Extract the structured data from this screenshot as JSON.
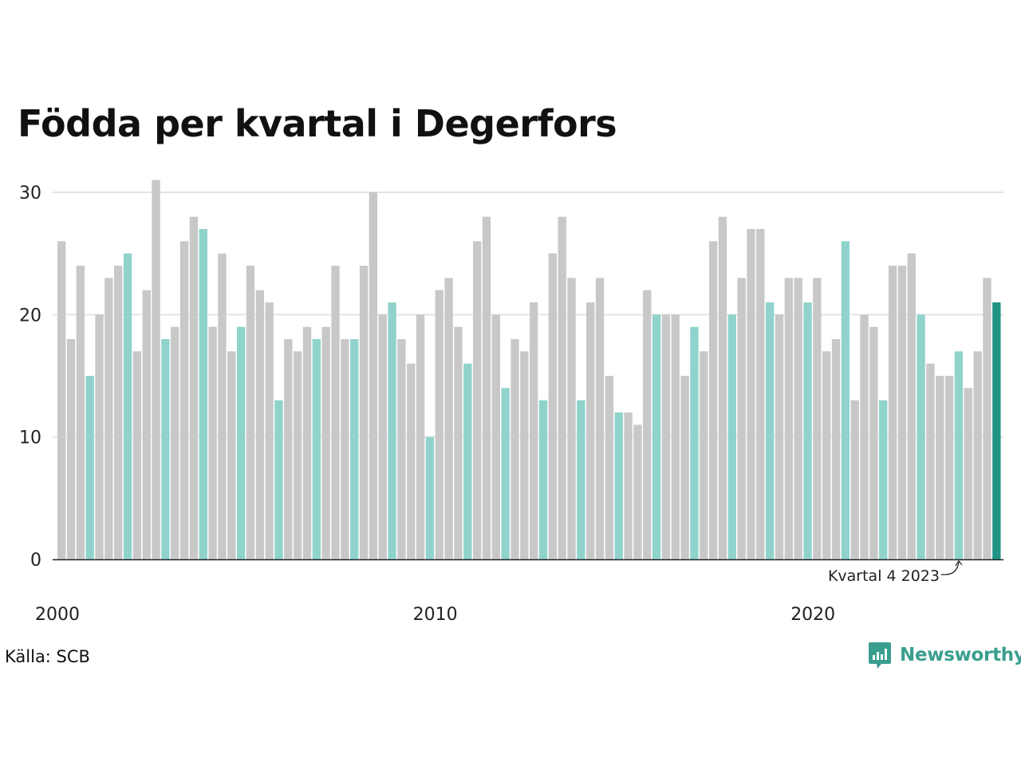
{
  "brand": {
    "name": "Newsworthy",
    "color": "#3a9e8e"
  },
  "source": "Källa: SCB",
  "chart_data": {
    "type": "bar",
    "title": "Födda per kvartal i Degerfors",
    "xlabel": "",
    "ylabel": "",
    "ylim": [
      0,
      30
    ],
    "y_ticks": [
      "0",
      "10",
      "20",
      "30"
    ],
    "grid": true,
    "x_tick_labels": [
      {
        "label": "2000",
        "index": 0
      },
      {
        "label": "2010",
        "index": 40
      },
      {
        "label": "2020",
        "index": 80
      }
    ],
    "annotation": {
      "text": "Kvartal 4 2023",
      "index": 95
    },
    "colors": {
      "default": "#c8c8c8",
      "q4": "#8fd3cc",
      "latest": "#1f9384"
    },
    "categories": [
      "2000 Q1",
      "2000 Q2",
      "2000 Q3",
      "2000 Q4",
      "2001 Q1",
      "2001 Q2",
      "2001 Q3",
      "2001 Q4",
      "2002 Q1",
      "2002 Q2",
      "2002 Q3",
      "2002 Q4",
      "2003 Q1",
      "2003 Q2",
      "2003 Q3",
      "2003 Q4",
      "2004 Q1",
      "2004 Q2",
      "2004 Q3",
      "2004 Q4",
      "2005 Q1",
      "2005 Q2",
      "2005 Q3",
      "2005 Q4",
      "2006 Q1",
      "2006 Q2",
      "2006 Q3",
      "2006 Q4",
      "2007 Q1",
      "2007 Q2",
      "2007 Q3",
      "2007 Q4",
      "2008 Q1",
      "2008 Q2",
      "2008 Q3",
      "2008 Q4",
      "2009 Q1",
      "2009 Q2",
      "2009 Q3",
      "2009 Q4",
      "2010 Q1",
      "2010 Q2",
      "2010 Q3",
      "2010 Q4",
      "2011 Q1",
      "2011 Q2",
      "2011 Q3",
      "2011 Q4",
      "2012 Q1",
      "2012 Q2",
      "2012 Q3",
      "2012 Q4",
      "2013 Q1",
      "2013 Q2",
      "2013 Q3",
      "2013 Q4",
      "2014 Q1",
      "2014 Q2",
      "2014 Q3",
      "2014 Q4",
      "2015 Q1",
      "2015 Q2",
      "2015 Q3",
      "2015 Q4",
      "2016 Q1",
      "2016 Q2",
      "2016 Q3",
      "2016 Q4",
      "2017 Q1",
      "2017 Q2",
      "2017 Q3",
      "2017 Q4",
      "2018 Q1",
      "2018 Q2",
      "2018 Q3",
      "2018 Q4",
      "2019 Q1",
      "2019 Q2",
      "2019 Q3",
      "2019 Q4",
      "2020 Q1",
      "2020 Q2",
      "2020 Q3",
      "2020 Q4",
      "2021 Q1",
      "2021 Q2",
      "2021 Q3",
      "2021 Q4",
      "2022 Q1",
      "2022 Q2",
      "2022 Q3",
      "2022 Q4",
      "2023 Q1",
      "2023 Q2",
      "2023 Q3",
      "2023 Q4",
      "2024 Q1",
      "2024 Q2",
      "2024 Q3",
      "2024 Q4"
    ],
    "values": [
      26,
      18,
      24,
      15,
      20,
      23,
      24,
      25,
      17,
      22,
      31,
      18,
      19,
      26,
      28,
      27,
      19,
      25,
      17,
      19,
      24,
      22,
      21,
      13,
      18,
      17,
      19,
      18,
      19,
      24,
      18,
      18,
      24,
      30,
      20,
      21,
      18,
      16,
      20,
      10,
      22,
      23,
      19,
      16,
      26,
      28,
      20,
      14,
      18,
      17,
      21,
      13,
      25,
      28,
      23,
      13,
      21,
      23,
      15,
      12,
      12,
      11,
      22,
      20,
      20,
      20,
      15,
      19,
      17,
      26,
      28,
      20,
      23,
      27,
      27,
      21,
      20,
      23,
      23,
      21,
      23,
      17,
      18,
      26,
      13,
      20,
      19,
      13,
      24,
      24,
      25,
      20,
      16,
      15,
      15,
      17,
      14,
      17,
      23,
      21
    ],
    "highlight": [
      false,
      false,
      false,
      true,
      false,
      false,
      false,
      true,
      false,
      false,
      false,
      true,
      false,
      false,
      false,
      true,
      false,
      false,
      false,
      true,
      false,
      false,
      false,
      true,
      false,
      false,
      false,
      true,
      false,
      false,
      false,
      true,
      false,
      false,
      false,
      true,
      false,
      false,
      false,
      true,
      false,
      false,
      false,
      true,
      false,
      false,
      false,
      true,
      false,
      false,
      false,
      true,
      false,
      false,
      false,
      true,
      false,
      false,
      false,
      true,
      false,
      false,
      false,
      true,
      false,
      false,
      false,
      true,
      false,
      false,
      false,
      true,
      false,
      false,
      false,
      true,
      false,
      false,
      false,
      true,
      false,
      false,
      false,
      true,
      false,
      false,
      false,
      true,
      false,
      false,
      false,
      true,
      false,
      false,
      false,
      true,
      false,
      false,
      false,
      true
    ]
  }
}
